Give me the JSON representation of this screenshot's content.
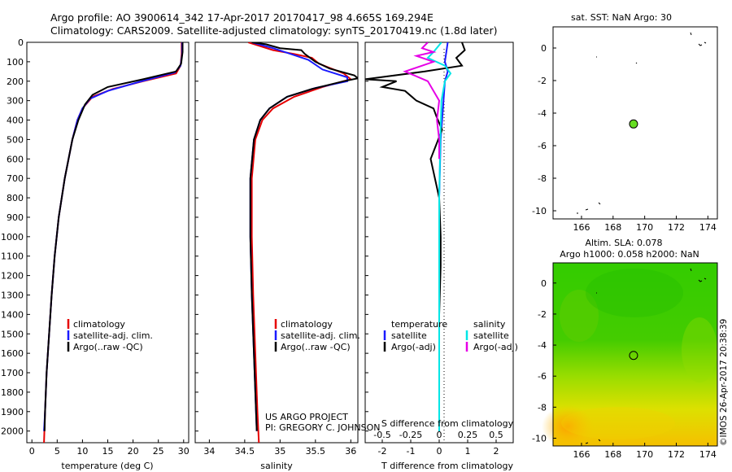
{
  "header": {
    "line1": "Argo profile: AO 3900614_342 17-Apr-2017 20170417_98 4.665S 169.294E",
    "line2": "Climatology: CARS2009. Satellite-adjusted climatology: synTS_20170419.nc (1.8d later)"
  },
  "colors": {
    "clim": "#e60000",
    "sat": "#1a1aff",
    "argo": "#000000",
    "sal_sat": "#00e6e6",
    "sal_argo": "#e600e6"
  },
  "chart_data": [
    {
      "type": "line",
      "id": "temperature",
      "xlabel": "temperature (deg C)",
      "ylabel": "",
      "xlim": [
        -1,
        31
      ],
      "ylim": [
        2060,
        0
      ],
      "xticks": [
        0,
        5,
        10,
        15,
        20,
        25,
        30
      ],
      "yticks": [
        0,
        100,
        200,
        300,
        400,
        500,
        600,
        700,
        800,
        900,
        1000,
        1100,
        1200,
        1300,
        1400,
        1500,
        1600,
        1700,
        1800,
        1900,
        2000
      ],
      "legend": [
        "climatology",
        "satellite-adj. clim.",
        "Argo(..raw -QC)"
      ],
      "series": [
        {
          "name": "climatology",
          "color": "#e60000",
          "points": [
            [
              29.6,
              0
            ],
            [
              29.6,
              60
            ],
            [
              29.4,
              120
            ],
            [
              28.5,
              160
            ],
            [
              22,
              200
            ],
            [
              16,
              240
            ],
            [
              12,
              280
            ],
            [
              10,
              340
            ],
            [
              9,
              400
            ],
            [
              8,
              500
            ],
            [
              6.5,
              700
            ],
            [
              5.3,
              900
            ],
            [
              4.5,
              1100
            ],
            [
              3.9,
              1300
            ],
            [
              3.4,
              1500
            ],
            [
              2.9,
              1700
            ],
            [
              2.6,
              1900
            ],
            [
              2.4,
              2060
            ]
          ]
        },
        {
          "name": "satellite-adj. clim.",
          "color": "#1a1aff",
          "points": [
            [
              29.7,
              0
            ],
            [
              29.7,
              60
            ],
            [
              29.4,
              120
            ],
            [
              28.3,
              155
            ],
            [
              21,
              205
            ],
            [
              15,
              250
            ],
            [
              11.5,
              290
            ],
            [
              10,
              340
            ],
            [
              9,
              400
            ],
            [
              8,
              500
            ],
            [
              6.5,
              700
            ],
            [
              5.3,
              900
            ],
            [
              4.5,
              1100
            ],
            [
              3.9,
              1300
            ],
            [
              3.4,
              1500
            ],
            [
              2.9,
              1700
            ],
            [
              2.6,
              1900
            ],
            [
              2.4,
              2000
            ]
          ]
        },
        {
          "name": "Argo(..raw -QC)",
          "color": "#000000",
          "points": [
            [
              29.8,
              0
            ],
            [
              29.8,
              50
            ],
            [
              29.5,
              110
            ],
            [
              28.5,
              150
            ],
            [
              22,
              190
            ],
            [
              15,
              230
            ],
            [
              12,
              270
            ],
            [
              10.5,
              320
            ],
            [
              9.2,
              400
            ],
            [
              8,
              500
            ],
            [
              6.5,
              700
            ],
            [
              5.3,
              900
            ],
            [
              4.5,
              1100
            ],
            [
              3.9,
              1300
            ],
            [
              3.4,
              1500
            ],
            [
              2.9,
              1700
            ],
            [
              2.6,
              1900
            ],
            [
              2.5,
              2000
            ]
          ]
        }
      ]
    },
    {
      "type": "line",
      "id": "salinity",
      "xlabel": "salinity",
      "xlim": [
        33.8,
        36.1
      ],
      "ylim": [
        2060,
        0
      ],
      "xticks": [
        34,
        34.5,
        35,
        35.5,
        36
      ],
      "xtick_labels": [
        "34",
        "34.5",
        "35",
        "35.5",
        "36"
      ],
      "legend": [
        "climatology",
        "satellite-adj. clim.",
        "Argo(..raw -QC)"
      ],
      "series": [
        {
          "name": "climatology",
          "color": "#e60000",
          "points": [
            [
              34.55,
              0
            ],
            [
              34.9,
              40
            ],
            [
              35.2,
              60
            ],
            [
              35.45,
              80
            ],
            [
              35.55,
              110
            ],
            [
              35.9,
              160
            ],
            [
              36.0,
              190
            ],
            [
              35.6,
              230
            ],
            [
              35.2,
              280
            ],
            [
              34.9,
              340
            ],
            [
              34.75,
              400
            ],
            [
              34.65,
              500
            ],
            [
              34.6,
              700
            ],
            [
              34.6,
              1000
            ],
            [
              34.62,
              1300
            ],
            [
              34.65,
              1600
            ],
            [
              34.68,
              1900
            ],
            [
              34.7,
              2060
            ]
          ]
        },
        {
          "name": "satellite-adj. clim.",
          "color": "#1a1aff",
          "points": [
            [
              34.6,
              0
            ],
            [
              34.9,
              30
            ],
            [
              35.15,
              60
            ],
            [
              35.4,
              90
            ],
            [
              35.6,
              140
            ],
            [
              35.95,
              180
            ],
            [
              35.95,
              200
            ],
            [
              35.5,
              235
            ],
            [
              35.1,
              280
            ],
            [
              34.85,
              340
            ],
            [
              34.72,
              400
            ],
            [
              34.63,
              500
            ],
            [
              34.58,
              700
            ],
            [
              34.58,
              1000
            ],
            [
              34.6,
              1300
            ],
            [
              34.63,
              1600
            ],
            [
              34.66,
              1900
            ],
            [
              34.67,
              2000
            ]
          ]
        },
        {
          "name": "Argo(..raw -QC)",
          "color": "#000000",
          "points": [
            [
              34.6,
              0
            ],
            [
              34.8,
              10
            ],
            [
              35.0,
              30
            ],
            [
              35.3,
              40
            ],
            [
              35.35,
              60
            ],
            [
              35.5,
              100
            ],
            [
              35.7,
              135
            ],
            [
              36.05,
              170
            ],
            [
              36.1,
              185
            ],
            [
              35.9,
              200
            ],
            [
              35.45,
              240
            ],
            [
              35.1,
              280
            ],
            [
              34.85,
              340
            ],
            [
              34.72,
              400
            ],
            [
              34.63,
              500
            ],
            [
              34.58,
              700
            ],
            [
              34.58,
              1000
            ],
            [
              34.6,
              1300
            ],
            [
              34.63,
              1600
            ],
            [
              34.66,
              1900
            ],
            [
              34.67,
              2000
            ]
          ]
        }
      ]
    },
    {
      "type": "line",
      "id": "difference",
      "xlabel": "T difference from climatology",
      "x2label": "S difference from climatology",
      "xlim": [
        -2.6,
        2.6
      ],
      "x2lim": [
        -0.65,
        0.65
      ],
      "ylim": [
        2060,
        0
      ],
      "xticks": [
        -2,
        -1,
        0,
        1,
        2
      ],
      "x2ticks": [
        -0.5,
        -0.25,
        0,
        0.25,
        0.5
      ],
      "x2tick_labels": [
        "-0.5",
        "-0.25",
        "0",
        "0.25",
        "0.5"
      ],
      "legend_t": [
        "temperature",
        "satellite",
        "Argo(-adj)"
      ],
      "legend_s": [
        "salinity",
        "satellite",
        "Argo(-adj)"
      ],
      "series": [
        {
          "name": "T satellite",
          "color": "#1a1aff",
          "axis": "T",
          "points": [
            [
              0.3,
              0
            ],
            [
              0.25,
              50
            ],
            [
              0.2,
              100
            ],
            [
              0.3,
              150
            ],
            [
              0.2,
              200
            ],
            [
              0.15,
              300
            ],
            [
              0.05,
              500
            ],
            [
              0,
              800
            ],
            [
              0,
              1200
            ],
            [
              0,
              1600
            ],
            [
              0,
              2000
            ]
          ]
        },
        {
          "name": "T Argo(-adj)",
          "color": "#000000",
          "axis": "T",
          "points": [
            [
              0.8,
              0
            ],
            [
              0.9,
              40
            ],
            [
              0.6,
              80
            ],
            [
              0.8,
              120
            ],
            [
              -0.5,
              150
            ],
            [
              -2.6,
              190
            ],
            [
              -1.5,
              200
            ],
            [
              -2.0,
              230
            ],
            [
              -1.2,
              250
            ],
            [
              -0.8,
              300
            ],
            [
              -0.2,
              340
            ],
            [
              -0.1,
              380
            ],
            [
              0.1,
              450
            ],
            [
              -0.3,
              600
            ],
            [
              0.0,
              800
            ],
            [
              0.05,
              1000
            ],
            [
              0.05,
              1150
            ],
            [
              0,
              1400
            ],
            [
              0,
              1700
            ],
            [
              0,
              2000
            ]
          ]
        },
        {
          "name": "S satellite",
          "color": "#00e6e6",
          "axis": "S",
          "points": [
            [
              0.02,
              0
            ],
            [
              -0.05,
              50
            ],
            [
              -0.1,
              80
            ],
            [
              0.05,
              120
            ],
            [
              0.1,
              160
            ],
            [
              0.05,
              200
            ],
            [
              0.02,
              300
            ],
            [
              0.01,
              500
            ],
            [
              0.0,
              800
            ],
            [
              0.0,
              1200
            ],
            [
              0.0,
              1600
            ],
            [
              0.0,
              2000
            ]
          ]
        },
        {
          "name": "S Argo(-adj)",
          "color": "#e600e6",
          "axis": "S",
          "points": [
            [
              -0.1,
              0
            ],
            [
              -0.15,
              30
            ],
            [
              -0.05,
              50
            ],
            [
              -0.2,
              70
            ],
            [
              -0.05,
              100
            ],
            [
              -0.3,
              150
            ],
            [
              -0.1,
              200
            ],
            [
              -0.05,
              250
            ],
            [
              0.0,
              300
            ],
            [
              -0.02,
              400
            ],
            [
              0,
              500
            ],
            [
              0,
              600
            ]
          ]
        }
      ]
    },
    {
      "type": "scatter",
      "id": "sst_map",
      "title": "sat. SST: NaN Argo: 30",
      "xlim": [
        164.2,
        174.6
      ],
      "ylim": [
        -10.5,
        1.3
      ],
      "xticks": [
        166,
        168,
        170,
        172,
        174
      ],
      "yticks": [
        0,
        -2,
        -4,
        -6,
        -8,
        -10
      ],
      "marker": [
        169.294,
        -4.665
      ]
    },
    {
      "type": "heatmap",
      "id": "sla_map",
      "title_line1": "Altim. SLA: 0.078",
      "title_line2": "Argo h1000: 0.058 h2000: NaN",
      "xlim": [
        164.2,
        174.6
      ],
      "ylim": [
        -10.5,
        1.3
      ],
      "xticks": [
        166,
        168,
        170,
        172,
        174
      ],
      "yticks": [
        0,
        -2,
        -4,
        -6,
        -8,
        -10
      ],
      "marker": [
        169.294,
        -4.665
      ]
    }
  ],
  "credits": {
    "project": "US ARGO PROJECT",
    "pi": "PI: GREGORY C. JOHNSON",
    "stamp": "©IMOS 26-Apr-2017 20:38:39"
  }
}
